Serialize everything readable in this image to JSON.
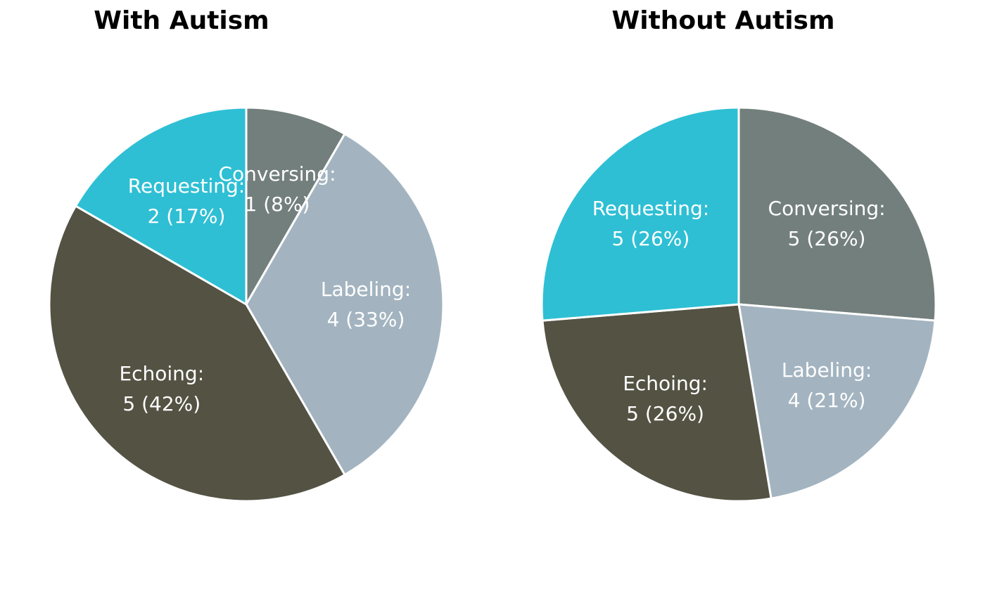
{
  "chart_data": [
    {
      "type": "pie",
      "title": "With Autism",
      "start_angle": "top",
      "direction": "clockwise",
      "slices": [
        {
          "category": "Conversing",
          "value": 1,
          "percent": "8%",
          "label_line1": "Conversing:",
          "label_line2": "1 (8%)",
          "color": "#737f7c"
        },
        {
          "category": "Labeling",
          "value": 4,
          "percent": "33%",
          "label_line1": "Labeling:",
          "label_line2": "4 (33%)",
          "color": "#a3b4c0"
        },
        {
          "category": "Echoing",
          "value": 5,
          "percent": "42%",
          "label_line1": "Echoing:",
          "label_line2": "5 (42%)",
          "color": "#545243"
        },
        {
          "category": "Requesting",
          "value": 2,
          "percent": "17%",
          "label_line1": "Requesting:",
          "label_line2": "2 (17%)",
          "color": "#2ebfd4"
        }
      ]
    },
    {
      "type": "pie",
      "title": "Without Autism",
      "start_angle": "top",
      "direction": "clockwise",
      "slices": [
        {
          "category": "Conversing",
          "value": 5,
          "percent": "26%",
          "label_line1": "Conversing:",
          "label_line2": "5 (26%)",
          "color": "#737f7c"
        },
        {
          "category": "Labeling",
          "value": 4,
          "percent": "21%",
          "label_line1": "Labeling:",
          "label_line2": "4 (21%)",
          "color": "#a3b4c0"
        },
        {
          "category": "Echoing",
          "value": 5,
          "percent": "26%",
          "label_line1": "Echoing:",
          "label_line2": "5 (26%)",
          "color": "#545243"
        },
        {
          "category": "Requesting",
          "value": 5,
          "percent": "26%",
          "label_line1": "Requesting:",
          "label_line2": "5 (26%)",
          "color": "#2ebfd4"
        }
      ]
    }
  ]
}
